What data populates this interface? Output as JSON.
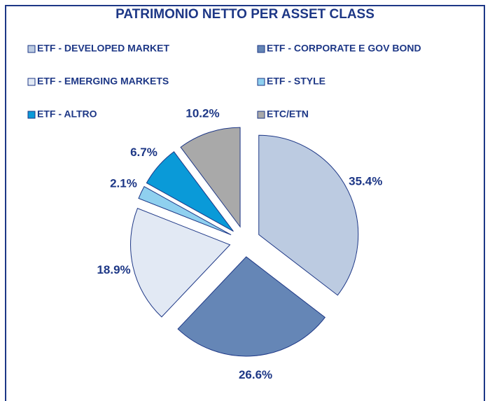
{
  "chart_data": {
    "type": "pie",
    "title": "PATRIMONIO NETTO PER ASSET CLASS",
    "categories": [
      "ETF - DEVELOPED MARKET",
      "ETF - CORPORATE E GOV BOND",
      "ETF - EMERGING MARKETS",
      "ETF - STYLE",
      "ETF - ALTRO",
      "ETC/ETN"
    ],
    "values": [
      35.4,
      26.6,
      18.9,
      2.1,
      6.7,
      10.2
    ],
    "value_labels": [
      "35.4%",
      "26.6%",
      "18.9%",
      "2.1%",
      "6.7%",
      "10.2%"
    ],
    "colors": [
      "#bccbe1",
      "#6586b6",
      "#e2e9f4",
      "#8fd0ef",
      "#0a9ad8",
      "#a9a9a9"
    ],
    "legend": "top"
  }
}
